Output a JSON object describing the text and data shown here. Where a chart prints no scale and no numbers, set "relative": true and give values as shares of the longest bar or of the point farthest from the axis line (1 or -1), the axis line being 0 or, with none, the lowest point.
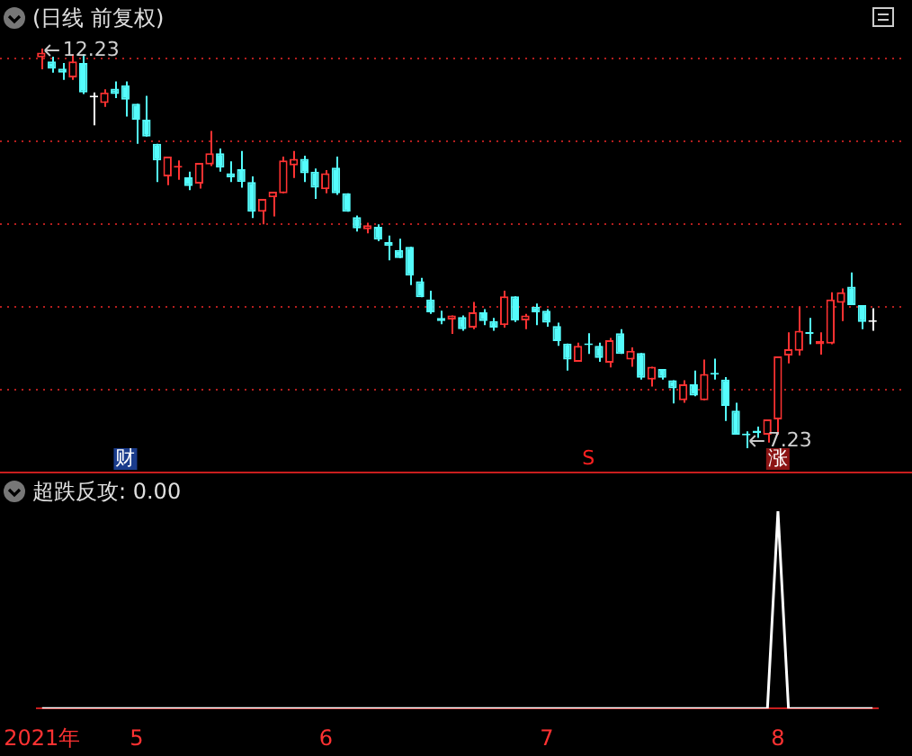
{
  "chart_data": [
    {
      "type": "candlestick",
      "title": "(日线 前复权)",
      "categories": [
        null,
        null,
        null,
        null,
        null,
        null,
        null,
        null,
        null,
        null,
        null,
        null,
        null,
        null,
        null,
        null,
        null,
        null,
        null,
        null,
        null,
        null,
        null,
        null,
        null,
        null,
        null,
        null,
        null,
        null,
        null,
        null,
        null,
        null,
        null,
        null,
        null,
        null,
        null,
        null,
        null,
        null,
        null,
        null,
        null,
        null,
        null,
        null,
        null,
        null,
        null,
        null,
        null,
        null,
        null,
        null,
        null,
        null,
        null,
        null,
        null,
        null,
        null,
        null,
        null,
        null,
        null,
        null,
        null,
        null,
        null,
        null,
        null,
        null,
        null,
        null,
        null,
        null,
        null,
        null
      ],
      "ohlc": [
        [
          12.12,
          12.23,
          11.97,
          12.18
        ],
        [
          12.07,
          12.13,
          11.93,
          11.98
        ],
        [
          11.98,
          12.05,
          11.84,
          11.93
        ],
        [
          11.87,
          12.16,
          11.84,
          12.07
        ],
        [
          12.05,
          12.16,
          11.66,
          11.68
        ],
        [
          11.62,
          11.68,
          11.27,
          11.62
        ],
        [
          11.55,
          11.72,
          11.5,
          11.68
        ],
        [
          11.73,
          11.82,
          11.61,
          11.66
        ],
        [
          11.77,
          11.82,
          11.38,
          11.59
        ],
        [
          11.54,
          11.54,
          11.04,
          11.34
        ],
        [
          11.34,
          11.64,
          11.13,
          11.13
        ],
        [
          11.04,
          11.04,
          10.56,
          10.83
        ],
        [
          10.63,
          10.88,
          10.52,
          10.88
        ],
        [
          10.74,
          10.83,
          10.59,
          10.76
        ],
        [
          10.62,
          10.69,
          10.46,
          10.51
        ],
        [
          10.54,
          10.8,
          10.48,
          10.8
        ],
        [
          10.78,
          11.2,
          10.76,
          10.92
        ],
        [
          10.92,
          10.98,
          10.69,
          10.74
        ],
        [
          10.67,
          10.82,
          10.56,
          10.62
        ],
        [
          10.72,
          10.95,
          10.49,
          10.56
        ],
        [
          10.56,
          10.63,
          10.11,
          10.19
        ],
        [
          10.19,
          10.35,
          10.03,
          10.35
        ],
        [
          10.37,
          10.44,
          10.13,
          10.44
        ],
        [
          10.42,
          10.88,
          10.42,
          10.83
        ],
        [
          10.77,
          10.95,
          10.61,
          10.85
        ],
        [
          10.85,
          10.89,
          10.56,
          10.67
        ],
        [
          10.69,
          10.73,
          10.35,
          10.49
        ],
        [
          10.47,
          10.71,
          10.42,
          10.67
        ],
        [
          10.74,
          10.88,
          10.4,
          10.42
        ],
        [
          10.42,
          10.42,
          10.19,
          10.19
        ],
        [
          10.12,
          10.14,
          9.94,
          9.98
        ],
        [
          9.97,
          10.05,
          9.92,
          10.02
        ],
        [
          10.0,
          10.03,
          9.82,
          9.84
        ],
        [
          9.81,
          9.89,
          9.58,
          9.76
        ],
        [
          9.71,
          9.85,
          9.61,
          9.61
        ],
        [
          9.75,
          9.75,
          9.27,
          9.39
        ],
        [
          9.32,
          9.36,
          9.12,
          9.12
        ],
        [
          9.09,
          9.2,
          8.91,
          8.93
        ],
        [
          8.86,
          8.95,
          8.78,
          8.82
        ],
        [
          8.84,
          8.89,
          8.66,
          8.89
        ],
        [
          8.87,
          8.89,
          8.7,
          8.72
        ],
        [
          8.74,
          9.06,
          8.72,
          8.93
        ],
        [
          8.93,
          8.97,
          8.77,
          8.82
        ],
        [
          8.82,
          8.86,
          8.7,
          8.74
        ],
        [
          8.77,
          9.2,
          8.74,
          9.13
        ],
        [
          9.13,
          9.13,
          8.81,
          8.83
        ],
        [
          8.83,
          8.91,
          8.72,
          8.89
        ],
        [
          9.0,
          9.04,
          8.77,
          8.93
        ],
        [
          8.95,
          8.97,
          8.75,
          8.8
        ],
        [
          8.76,
          8.8,
          8.51,
          8.57
        ],
        [
          8.54,
          8.54,
          8.2,
          8.34
        ],
        [
          8.31,
          8.55,
          8.31,
          8.51
        ],
        [
          8.54,
          8.67,
          8.41,
          8.52
        ],
        [
          8.51,
          8.55,
          8.31,
          8.36
        ],
        [
          8.3,
          8.61,
          8.24,
          8.58
        ],
        [
          8.67,
          8.72,
          8.41,
          8.41
        ],
        [
          8.34,
          8.49,
          8.25,
          8.45
        ],
        [
          8.42,
          8.42,
          8.09,
          8.11
        ],
        [
          8.09,
          8.25,
          8.0,
          8.25
        ],
        [
          8.22,
          8.22,
          8.09,
          8.11
        ],
        [
          8.08,
          8.08,
          7.79,
          7.98
        ],
        [
          7.83,
          8.08,
          7.8,
          8.03
        ],
        [
          8.03,
          8.2,
          7.88,
          7.89
        ],
        [
          7.83,
          8.34,
          7.83,
          8.16
        ],
        [
          8.17,
          8.35,
          8.09,
          8.15
        ],
        [
          8.09,
          8.12,
          7.57,
          7.76
        ],
        [
          7.7,
          7.8,
          7.4,
          7.4
        ],
        [
          7.41,
          7.44,
          7.23,
          7.39
        ],
        [
          7.45,
          7.5,
          7.36,
          7.42
        ],
        [
          7.4,
          7.59,
          7.3,
          7.59
        ],
        [
          7.59,
          8.38,
          7.4,
          8.38
        ],
        [
          8.39,
          8.68,
          8.29,
          8.47
        ],
        [
          8.45,
          9.0,
          8.39,
          8.7
        ],
        [
          8.68,
          8.86,
          8.53,
          8.66
        ],
        [
          8.53,
          8.68,
          8.4,
          8.57
        ],
        [
          8.54,
          9.18,
          8.53,
          9.09
        ],
        [
          9.05,
          9.23,
          8.82,
          9.18
        ],
        [
          9.25,
          9.43,
          9.02,
          9.02
        ],
        [
          9.02,
          9.02,
          8.72,
          8.81
        ],
        [
          8.81,
          8.98,
          8.7,
          8.81
        ]
      ],
      "colors": [
        "#ff3232",
        "#54fcfc",
        "#54fcfc",
        "#ff3232",
        "#54fcfc",
        "#ffffff",
        "#ff3232",
        "#54fcfc",
        "#54fcfc",
        "#54fcfc",
        "#54fcfc",
        "#54fcfc",
        "#ff3232",
        "#ff3232",
        "#54fcfc",
        "#ff3232",
        "#ff3232",
        "#54fcfc",
        "#54fcfc",
        "#54fcfc",
        "#54fcfc",
        "#ff3232",
        "#ff3232",
        "#ff3232",
        "#ff3232",
        "#54fcfc",
        "#54fcfc",
        "#ff3232",
        "#54fcfc",
        "#54fcfc",
        "#54fcfc",
        "#ff3232",
        "#54fcfc",
        "#54fcfc",
        "#54fcfc",
        "#54fcfc",
        "#54fcfc",
        "#54fcfc",
        "#54fcfc",
        "#ff3232",
        "#54fcfc",
        "#ff3232",
        "#54fcfc",
        "#54fcfc",
        "#ff3232",
        "#54fcfc",
        "#ff3232",
        "#54fcfc",
        "#54fcfc",
        "#54fcfc",
        "#54fcfc",
        "#ff3232",
        "#54fcfc",
        "#54fcfc",
        "#ff3232",
        "#54fcfc",
        "#ff3232",
        "#54fcfc",
        "#ff3232",
        "#54fcfc",
        "#54fcfc",
        "#ff3232",
        "#54fcfc",
        "#ff3232",
        "#54fcfc",
        "#54fcfc",
        "#54fcfc",
        "#54fcfc",
        "#54fcfc",
        "#ff3232",
        "#ff3232",
        "#ff3232",
        "#ff3232",
        "#54fcfc",
        "#ff3232",
        "#ff3232",
        "#ff3232",
        "#54fcfc",
        "#54fcfc",
        "#ffffff"
      ],
      "yticks": [
        {
          "value": 12.11,
          "label": null
        },
        {
          "value": 11.08,
          "label": null
        },
        {
          "value": 10.04,
          "label": null
        },
        {
          "value": 9.01,
          "label": null
        },
        {
          "value": 7.98,
          "label": null
        }
      ],
      "grid": "y",
      "tick_labels": false,
      "annotations": [
        "12.23",
        "7.23",
        "财",
        "S",
        "涨"
      ]
    },
    {
      "type": "line",
      "title": "超跌反攻: 0.00",
      "categories": [
        "2021年",
        null,
        null,
        null,
        null,
        null,
        null,
        null,
        null,
        "5",
        null,
        null,
        null,
        null,
        null,
        null,
        null,
        null,
        null,
        null,
        null,
        null,
        null,
        null,
        null,
        null,
        null,
        "6",
        null,
        null,
        null,
        null,
        null,
        null,
        null,
        null,
        null,
        null,
        null,
        null,
        null,
        null,
        null,
        null,
        null,
        null,
        null,
        null,
        "7",
        null,
        null,
        null,
        null,
        null,
        null,
        null,
        null,
        null,
        null,
        null,
        null,
        null,
        null,
        null,
        null,
        null,
        null,
        null,
        null,
        null,
        "8",
        null,
        null,
        null,
        null,
        null,
        null,
        null,
        null,
        null
      ],
      "values": [
        0,
        0,
        0,
        0,
        0,
        0,
        0,
        0,
        0,
        0,
        0,
        0,
        0,
        0,
        0,
        0,
        0,
        0,
        0,
        0,
        0,
        0,
        0,
        0,
        0,
        0,
        0,
        0,
        0,
        0,
        0,
        0,
        0,
        0,
        0,
        0,
        0,
        0,
        0,
        0,
        0,
        0,
        0,
        0,
        0,
        0,
        0,
        0,
        0,
        0,
        0,
        0,
        0,
        0,
        0,
        0,
        0,
        0,
        0,
        0,
        0,
        0,
        0,
        0,
        0,
        0,
        0,
        0,
        0,
        0,
        1,
        0,
        0,
        0,
        0,
        0,
        0,
        0,
        0,
        0
      ],
      "color": "#ffffff",
      "relative": true,
      "tick_labels": "x"
    }
  ]
}
